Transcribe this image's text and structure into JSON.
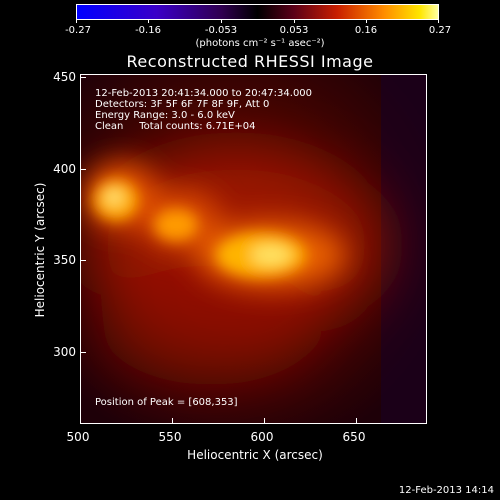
{
  "colorbar": {
    "ticks": [
      "-0.27",
      "-0.16",
      "-0.053",
      "0.053",
      "0.16",
      "0.27"
    ],
    "units": "(photons cm⁻² s⁻¹ asec⁻²)"
  },
  "title": "Reconstructed RHESSI Image",
  "info": {
    "time": "12-Feb-2013 20:41:34.000 to 20:47:34.000",
    "detectors": "Detectors: 3F 5F 6F 7F 8F 9F, Att 0",
    "energy": "Energy Range: 3.0 - 6.0 keV",
    "clean": "Clean     Total counts: 6.71E+04",
    "peak": "Position of Peak = [608,353]"
  },
  "axes": {
    "xlabel": "Heliocentric X (arcsec)",
    "ylabel": "Heliocentric Y (arcsec)",
    "xticks": [
      "500",
      "550",
      "600",
      "650"
    ],
    "yticks": [
      "450",
      "400",
      "350",
      "300"
    ]
  },
  "footer": "12-Feb-2013 14:14"
}
